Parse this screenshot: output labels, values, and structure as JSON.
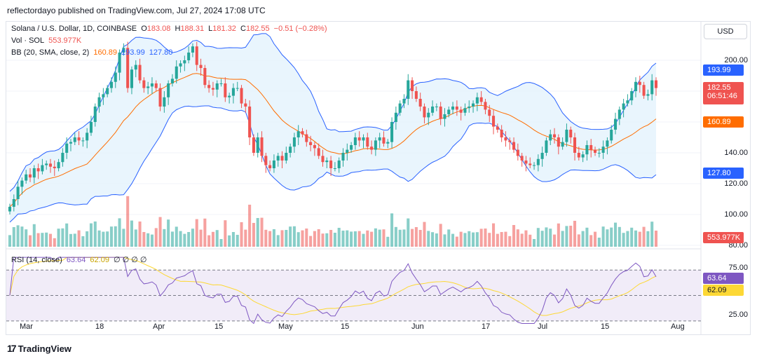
{
  "header": {
    "attribution": "reflectordayo published on TradingView.com, Jul 27, 2024 17:08 UTC"
  },
  "legend": {
    "symbol": "Solana / U.S. Dollar, 1D, COINBASE",
    "o_label": "O",
    "o_value": "183.08",
    "h_label": "H",
    "h_value": "188.31",
    "l_label": "L",
    "l_value": "181.32",
    "c_label": "C",
    "c_value": "182.55",
    "change": "−0.51 (−0.28%)",
    "vol_label": "Vol · SOL",
    "vol_value": "553.977K",
    "bb_label": "BB (20, SMA, close, 2)",
    "bb_mid": "160.89",
    "bb_upper": "193.99",
    "bb_lower": "127.80",
    "rsi_label": "RSI (14, close)",
    "rsi_value": "63.64",
    "rsi_ma": "62.09",
    "rsi_zeros": "∅ ∅ ∅ ∅"
  },
  "currency": "USD",
  "brand": {
    "name": "TradingView",
    "icon_name": "tradingview-logo-icon"
  },
  "colors": {
    "up": "#26a69a",
    "down": "#ef5350",
    "bb_mid": "#ff6d00",
    "bb_band": "#2962ff",
    "bb_fill": "#e3f2fd",
    "rsi": "#7e57c2",
    "rsi_ma": "#fdd835",
    "rsi_bg": "#ede7f6"
  },
  "chart_data": [
    {
      "type": "candlestick",
      "title": "Solana / U.S. Dollar, 1D, COINBASE",
      "ylim": [
        80,
        225
      ],
      "price_ticks": [
        "200.00",
        "180.00",
        "160.00",
        "140.00",
        "120.00",
        "100.00",
        "80.00"
      ],
      "x_labels": [
        "Mar",
        "18",
        "Apr",
        "15",
        "May",
        "15",
        "Jun",
        "17",
        "Jul",
        "15",
        "Aug"
      ],
      "close": [
        105,
        110,
        118,
        122,
        126,
        124,
        130,
        128,
        132,
        133,
        131,
        130,
        134,
        140,
        146,
        147,
        150,
        148,
        148,
        153,
        160,
        170,
        176,
        178,
        182,
        186,
        192,
        205,
        208,
        182,
        194,
        197,
        187,
        182,
        183,
        185,
        182,
        170,
        176,
        185,
        188,
        196,
        198,
        200,
        205,
        209,
        197,
        195,
        184,
        182,
        181,
        185,
        185,
        176,
        177,
        182,
        182,
        172,
        170,
        150,
        140,
        150,
        138,
        132,
        130,
        135,
        138,
        135,
        140,
        144,
        150,
        154,
        152,
        147,
        145,
        143,
        138,
        134,
        135,
        130,
        130,
        135,
        140,
        142,
        145,
        150,
        148,
        150,
        144,
        142,
        148,
        150,
        146,
        147,
        160,
        166,
        172,
        175,
        187,
        180,
        175,
        170,
        163,
        166,
        170,
        170,
        162,
        165,
        168,
        170,
        168,
        166,
        169,
        170,
        172,
        176,
        173,
        168,
        164,
        157,
        155,
        150,
        148,
        147,
        142,
        138,
        135,
        133,
        132,
        132,
        136,
        140,
        148,
        152,
        150,
        144,
        147,
        155,
        150,
        140,
        137,
        139,
        145,
        142,
        140,
        140,
        144,
        148,
        155,
        162,
        168,
        172,
        174,
        180,
        186,
        184,
        177,
        178,
        187,
        182
      ],
      "series": [
        {
          "name": "Close",
          "color": "#131722"
        },
        {
          "name": "BB Basis",
          "values_note": "20-period SMA"
        }
      ],
      "last": {
        "open": 183.08,
        "high": 188.31,
        "low": 181.32,
        "close": 182.55,
        "basis": 160.89,
        "upper": 193.99,
        "lower": 127.8
      }
    },
    {
      "type": "bar",
      "title": "Vol · SOL",
      "last_value": "553.977K"
    },
    {
      "type": "line",
      "title": "RSI (14, close)",
      "ylim": [
        20,
        85
      ],
      "y_ticks": [
        "75.00",
        "25.00"
      ],
      "levels": [
        70,
        50,
        30
      ],
      "last_rsi": 63.64,
      "last_ma": 62.09
    }
  ],
  "tags": {
    "last_price": "182.55",
    "countdown": "06:51:46",
    "upper": "193.99",
    "basis": "160.89",
    "lower": "127.80",
    "volume": "553.977K",
    "rsi": "63.64",
    "rsi_ma": "62.09"
  }
}
